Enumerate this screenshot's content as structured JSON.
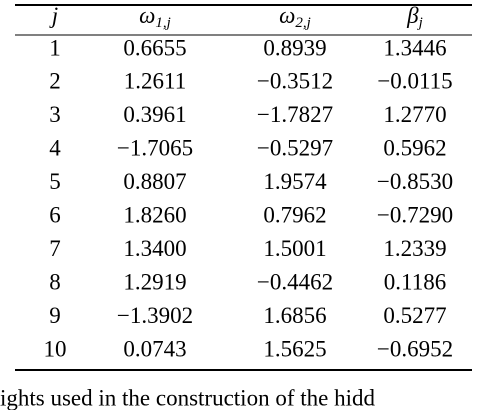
{
  "table": {
    "header": [
      {
        "symbol": "j",
        "sub": ""
      },
      {
        "symbol": "ω",
        "sub": "1,j"
      },
      {
        "symbol": "ω",
        "sub": "2,j"
      },
      {
        "symbol": "β",
        "sub": "j"
      }
    ],
    "rows": [
      [
        "1",
        "0.6655",
        "0.8939",
        "1.3446"
      ],
      [
        "2",
        "1.2611",
        "−0.3512",
        "−0.0115"
      ],
      [
        "3",
        "0.3961",
        "−1.7827",
        "1.2770"
      ],
      [
        "4",
        "−1.7065",
        "−0.5297",
        "0.5962"
      ],
      [
        "5",
        "0.8807",
        "1.9574",
        "−0.8530"
      ],
      [
        "6",
        "1.8260",
        "0.7962",
        "−0.7290"
      ],
      [
        "7",
        "1.3400",
        "1.5001",
        "1.2339"
      ],
      [
        "8",
        "1.2919",
        "−0.4462",
        "0.1186"
      ],
      [
        "9",
        "−1.3902",
        "1.6856",
        "0.5277"
      ],
      [
        "10",
        "0.0743",
        "1.5625",
        "−0.6952"
      ]
    ]
  },
  "caption": "ights used in the construction of the hidd"
}
